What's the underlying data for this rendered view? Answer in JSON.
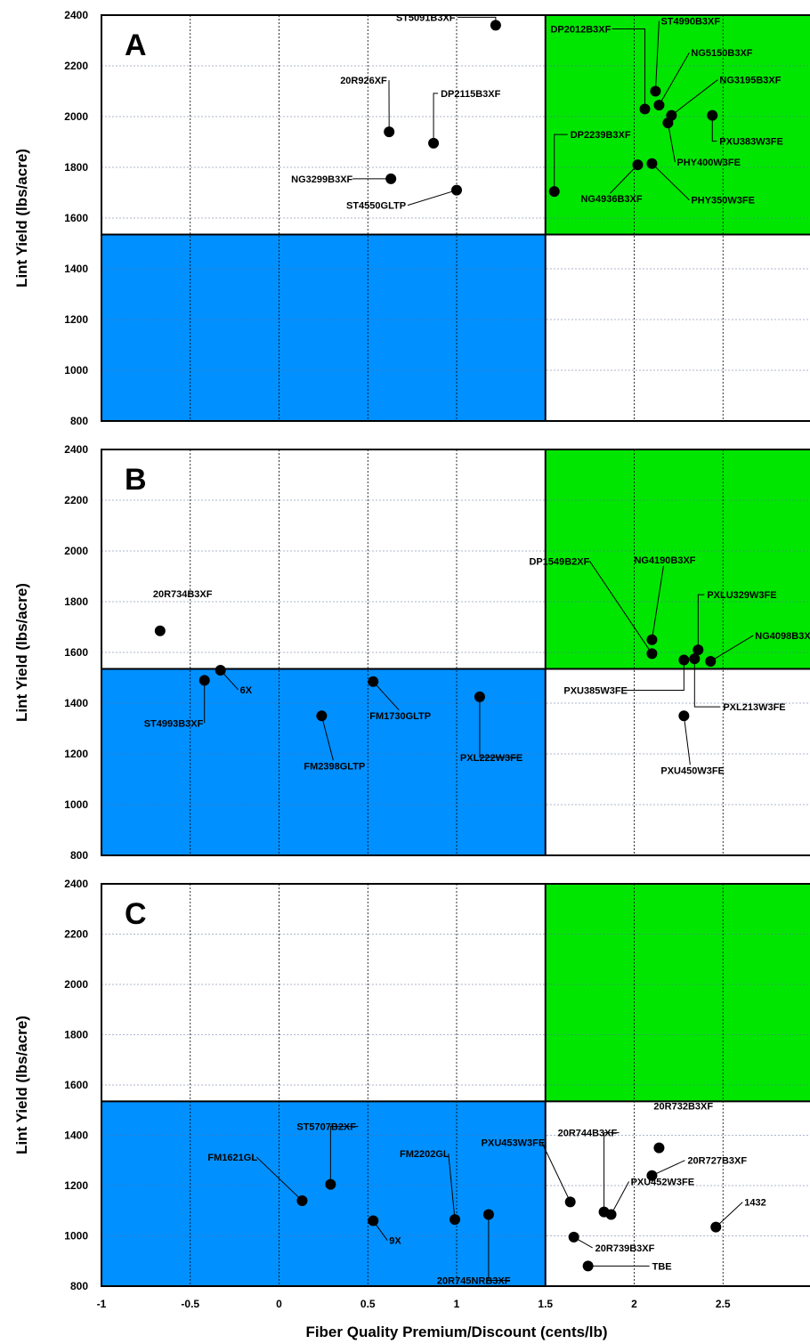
{
  "chart_data": [
    {
      "type": "scatter",
      "panel": "A",
      "xlabel": "",
      "ylabel": "Lint Yield (lbs/acre)",
      "xlim": [
        -1,
        3
      ],
      "ylim": [
        800,
        2400
      ],
      "xticks": [],
      "yticks": [
        "800",
        "1000",
        "1200",
        "1400",
        "1600",
        "1800",
        "2000",
        "2200",
        "2400"
      ],
      "quadrant_split": {
        "x": 1.5,
        "y": 1535
      },
      "quadrant_colors": {
        "high_high": "#00e600",
        "low_low": "#0090ff"
      },
      "grid": true,
      "points": [
        {
          "name": "ST5091B3XF",
          "x": 1.22,
          "y": 2360
        },
        {
          "name": "20R926XF",
          "x": 0.62,
          "y": 1940
        },
        {
          "name": "DP2115B3XF",
          "x": 0.87,
          "y": 1895
        },
        {
          "name": "NG3299B3XF",
          "x": 0.63,
          "y": 1755
        },
        {
          "name": "ST4550GLTP",
          "x": 1.0,
          "y": 1710
        },
        {
          "name": "DP2239B3XF",
          "x": 1.55,
          "y": 1705
        },
        {
          "name": "DP2012B3XF",
          "x": 2.06,
          "y": 2030
        },
        {
          "name": "ST4990B3XF",
          "x": 2.12,
          "y": 2100
        },
        {
          "name": "NG5150B3XF",
          "x": 2.14,
          "y": 2045
        },
        {
          "name": "NG3195B3XF",
          "x": 2.21,
          "y": 2005
        },
        {
          "name": "PXU383W3FE",
          "x": 2.44,
          "y": 2005
        },
        {
          "name": "PHY400W3FE",
          "x": 2.19,
          "y": 1975
        },
        {
          "name": "NG4936B3XF",
          "x": 2.02,
          "y": 1810
        },
        {
          "name": "PHY350W3FE",
          "x": 2.1,
          "y": 1815
        }
      ]
    },
    {
      "type": "scatter",
      "panel": "B",
      "xlabel": "",
      "ylabel": "Lint Yield (lbs/acre)",
      "xlim": [
        -1,
        3
      ],
      "ylim": [
        800,
        2400
      ],
      "xticks": [],
      "yticks": [
        "800",
        "1000",
        "1200",
        "1400",
        "1600",
        "1800",
        "2000",
        "2200",
        "2400"
      ],
      "quadrant_split": {
        "x": 1.5,
        "y": 1535
      },
      "quadrant_colors": {
        "high_high": "#00e600",
        "low_low": "#0090ff"
      },
      "grid": true,
      "points": [
        {
          "name": "20R734B3XF",
          "x": -0.67,
          "y": 1685
        },
        {
          "name": "6X",
          "x": -0.33,
          "y": 1530
        },
        {
          "name": "ST4993B3XF",
          "x": -0.42,
          "y": 1490
        },
        {
          "name": "FM1730GLTP",
          "x": 0.53,
          "y": 1485
        },
        {
          "name": "FM2398GLTP",
          "x": 0.24,
          "y": 1350
        },
        {
          "name": "PXL222W3FE",
          "x": 1.13,
          "y": 1425
        },
        {
          "name": "DP1549B2XF",
          "x": 2.1,
          "y": 1595
        },
        {
          "name": "NG4190B3XF",
          "x": 2.1,
          "y": 1650
        },
        {
          "name": "PXLU329W3FE",
          "x": 2.36,
          "y": 1610
        },
        {
          "name": "NG4098B3XF",
          "x": 2.43,
          "y": 1565
        },
        {
          "name": "PXU385W3FE",
          "x": 2.28,
          "y": 1570
        },
        {
          "name": "PXL213W3FE",
          "x": 2.34,
          "y": 1575
        },
        {
          "name": "PXU450W3FE",
          "x": 2.28,
          "y": 1350
        }
      ]
    },
    {
      "type": "scatter",
      "panel": "C",
      "xlabel": "Fiber Quality Premium/Discount (cents/lb)",
      "ylabel": "Lint Yield (lbs/acre)",
      "xlim": [
        -1,
        3
      ],
      "ylim": [
        800,
        2400
      ],
      "xticks": [
        "-1",
        "-0.5",
        "0",
        "0.5",
        "1",
        "1.5",
        "2",
        "2.5"
      ],
      "yticks": [
        "800",
        "1000",
        "1200",
        "1400",
        "1600",
        "1800",
        "2000",
        "2200",
        "2400"
      ],
      "quadrant_split": {
        "x": 1.5,
        "y": 1535
      },
      "quadrant_colors": {
        "high_high": "#00e600",
        "low_low": "#0090ff"
      },
      "grid": true,
      "points": [
        {
          "name": "FM1621GL",
          "x": 0.13,
          "y": 1140
        },
        {
          "name": "ST5707B2XF",
          "x": 0.29,
          "y": 1205
        },
        {
          "name": "9X",
          "x": 0.53,
          "y": 1060
        },
        {
          "name": "FM2202GL",
          "x": 0.99,
          "y": 1065
        },
        {
          "name": "20R745NRB3XF",
          "x": 1.18,
          "y": 1085
        },
        {
          "name": "PXU453W3FE",
          "x": 1.64,
          "y": 1135
        },
        {
          "name": "20R744B3XF",
          "x": 1.83,
          "y": 1095
        },
        {
          "name": "PXU452W3FE",
          "x": 1.87,
          "y": 1085
        },
        {
          "name": "20R732B3XF",
          "x": 2.14,
          "y": 1350
        },
        {
          "name": "20R727B3XF",
          "x": 2.1,
          "y": 1240
        },
        {
          "name": "20R739B3XF",
          "x": 1.66,
          "y": 995
        },
        {
          "name": "1432",
          "x": 2.46,
          "y": 1035
        },
        {
          "name": "TBE",
          "x": 1.74,
          "y": 880
        }
      ]
    }
  ]
}
